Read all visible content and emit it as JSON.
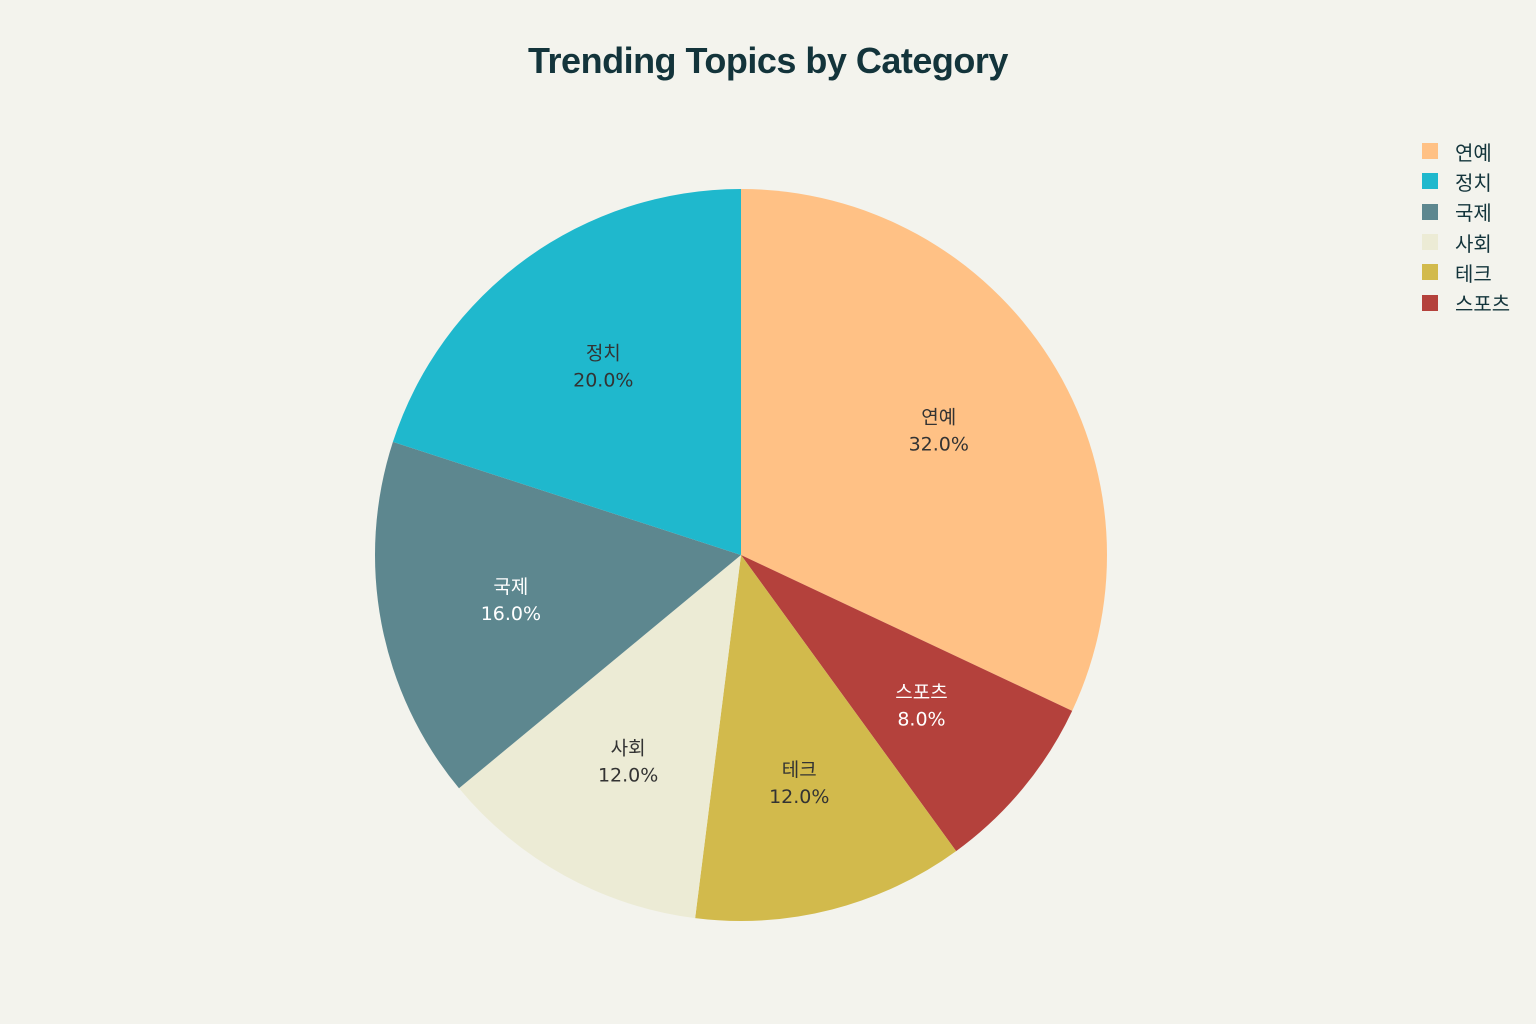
{
  "chart_data": {
    "type": "pie",
    "title": "Trending Topics by Category",
    "slices": [
      {
        "label": "연예",
        "value": 32.0,
        "display": "32.0%",
        "color": "#ffc185",
        "text_color": "#333333"
      },
      {
        "label": "스포츠",
        "value": 8.0,
        "display": "8.0%",
        "color": "#b4413c",
        "text_color": "#ffffff"
      },
      {
        "label": "테크",
        "value": 12.0,
        "display": "12.0%",
        "color": "#d2ba4c",
        "text_color": "#333333"
      },
      {
        "label": "사회",
        "value": 12.0,
        "display": "12.0%",
        "color": "#ecebd5",
        "text_color": "#333333"
      },
      {
        "label": "국제",
        "value": 16.0,
        "display": "16.0%",
        "color": "#5d878f",
        "text_color": "#ffffff"
      },
      {
        "label": "정치",
        "value": 20.0,
        "display": "20.0%",
        "color": "#1fb8cd",
        "text_color": "#333333"
      }
    ],
    "legend": {
      "placement": "top-right",
      "order": [
        "연예",
        "정치",
        "국제",
        "사회",
        "테크",
        "스포츠"
      ]
    }
  }
}
